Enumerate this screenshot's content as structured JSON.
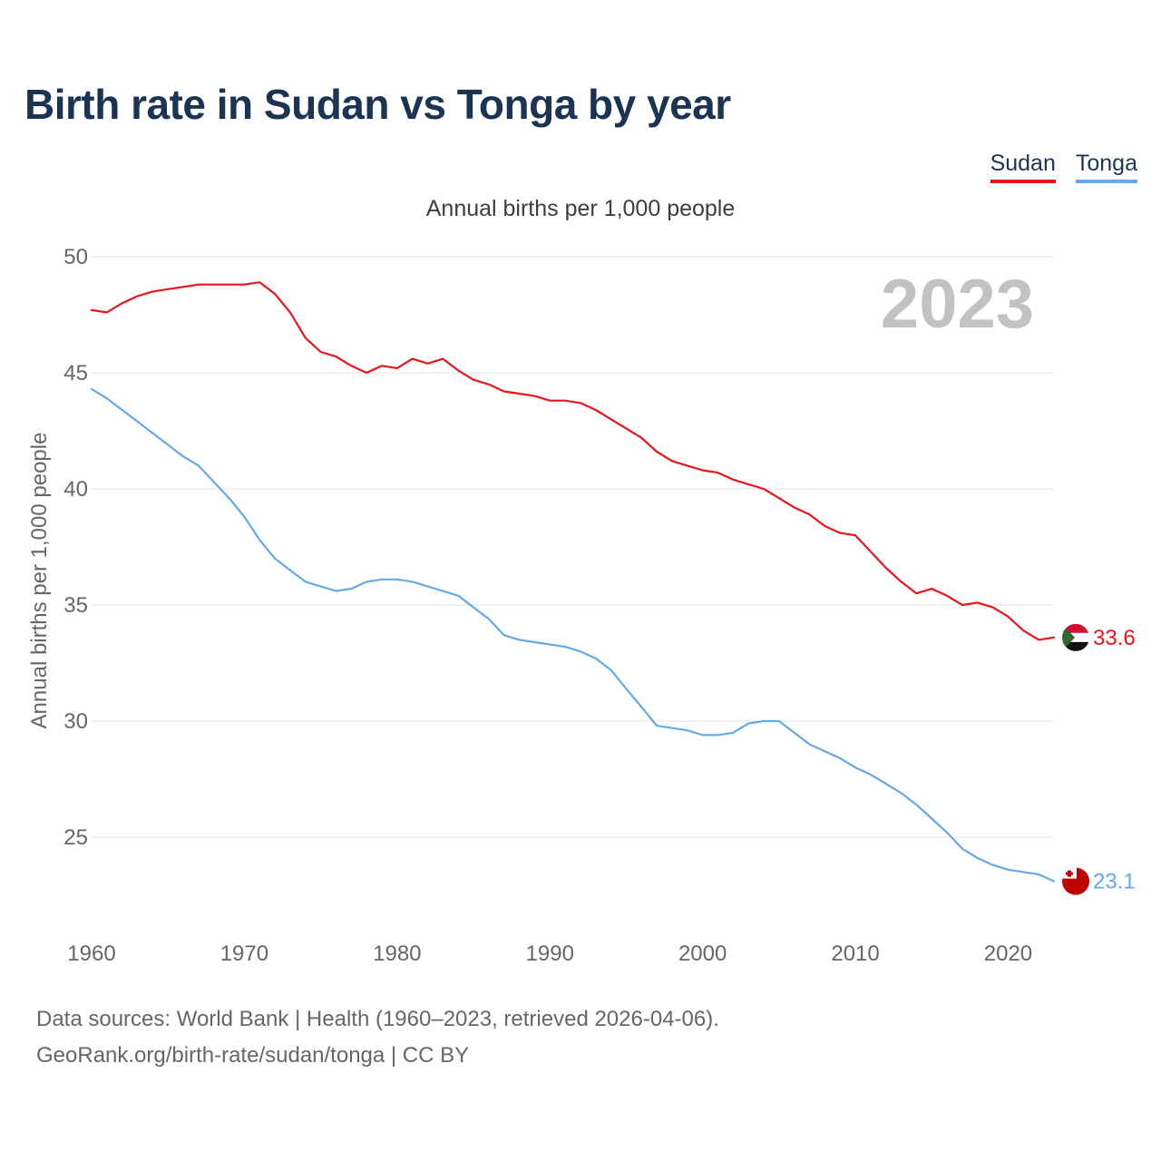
{
  "title": "Birth rate in Sudan vs Tonga by year",
  "subtitle": "Annual births per 1,000 people",
  "legend": [
    {
      "name": "Sudan",
      "color": "#e8151b"
    },
    {
      "name": "Tonga",
      "color": "#64a9e8"
    }
  ],
  "footer": {
    "line1": "Data sources: World Bank | Health (1960–2023, retrieved 2026-04-06).",
    "line2": "GeoRank.org/birth-rate/sudan/tonga | CC BY"
  },
  "chart_data": {
    "type": "line",
    "title": "Birth rate in Sudan vs Tonga by year",
    "ylabel": "Annual births per 1,000 people",
    "xlabel": "",
    "year_watermark": "2023",
    "xlim": [
      1960,
      2023
    ],
    "ylim": [
      22,
      50
    ],
    "xticks": [
      1960,
      1970,
      1980,
      1990,
      2000,
      2010,
      2020
    ],
    "yticks": [
      25,
      30,
      35,
      40,
      45,
      50
    ],
    "grid": true,
    "x": [
      1960,
      1961,
      1962,
      1963,
      1964,
      1965,
      1966,
      1967,
      1968,
      1969,
      1970,
      1971,
      1972,
      1973,
      1974,
      1975,
      1976,
      1977,
      1978,
      1979,
      1980,
      1981,
      1982,
      1983,
      1984,
      1985,
      1986,
      1987,
      1988,
      1989,
      1990,
      1991,
      1992,
      1993,
      1994,
      1995,
      1996,
      1997,
      1998,
      1999,
      2000,
      2001,
      2002,
      2003,
      2004,
      2005,
      2006,
      2007,
      2008,
      2009,
      2010,
      2011,
      2012,
      2013,
      2014,
      2015,
      2016,
      2017,
      2018,
      2019,
      2020,
      2021,
      2022,
      2023
    ],
    "series": [
      {
        "name": "Sudan",
        "color": "#e8151b",
        "end_label": "33.6",
        "values": [
          47.7,
          47.6,
          48.0,
          48.3,
          48.5,
          48.6,
          48.7,
          48.8,
          48.8,
          48.8,
          48.8,
          48.9,
          48.4,
          47.6,
          46.5,
          45.9,
          45.7,
          45.3,
          45.0,
          45.3,
          45.2,
          45.6,
          45.4,
          45.6,
          45.1,
          44.7,
          44.5,
          44.2,
          44.1,
          44.0,
          43.8,
          43.8,
          43.7,
          43.4,
          43.0,
          42.6,
          42.2,
          41.6,
          41.2,
          41.0,
          40.8,
          40.7,
          40.4,
          40.2,
          40.0,
          39.6,
          39.2,
          38.9,
          38.4,
          38.1,
          38.0,
          37.3,
          36.6,
          36.0,
          35.5,
          35.7,
          35.4,
          35.0,
          35.1,
          34.9,
          34.5,
          33.9,
          33.5,
          33.6
        ]
      },
      {
        "name": "Tonga",
        "color": "#64a9e8",
        "end_label": "23.1",
        "values": [
          44.3,
          43.9,
          43.4,
          42.9,
          42.4,
          41.9,
          41.4,
          41.0,
          40.3,
          39.6,
          38.8,
          37.8,
          37.0,
          36.5,
          36.0,
          35.8,
          35.6,
          35.7,
          36.0,
          36.1,
          36.1,
          36.0,
          35.8,
          35.6,
          35.4,
          34.9,
          34.4,
          33.7,
          33.5,
          33.4,
          33.3,
          33.2,
          33.0,
          32.7,
          32.2,
          31.4,
          30.6,
          29.8,
          29.7,
          29.6,
          29.4,
          29.4,
          29.5,
          29.9,
          30.0,
          30.0,
          29.5,
          29.0,
          28.7,
          28.4,
          28.0,
          27.7,
          27.3,
          26.9,
          26.4,
          25.8,
          25.2,
          24.5,
          24.1,
          23.8,
          23.6,
          23.5,
          23.4,
          23.1
        ]
      }
    ]
  }
}
